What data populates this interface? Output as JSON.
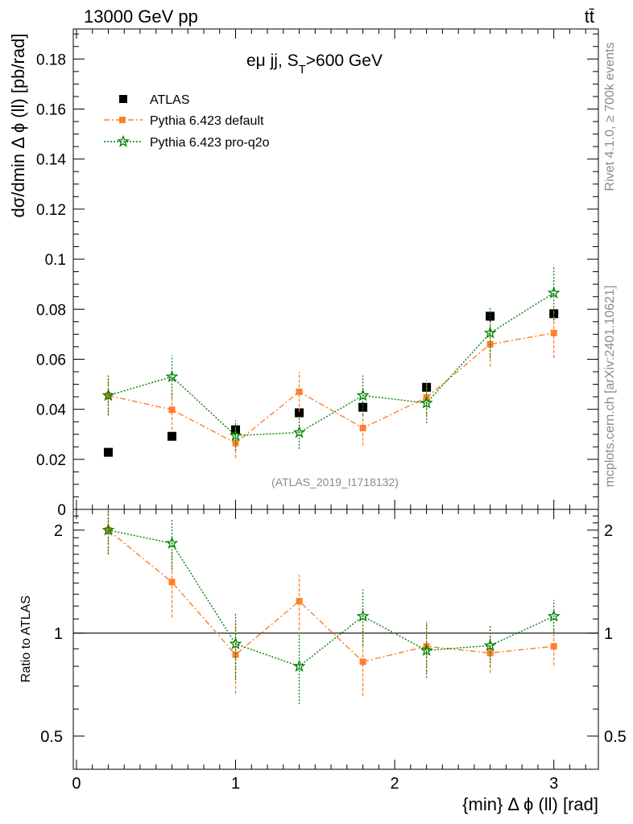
{
  "header": {
    "energy": "13000 GeV pp",
    "process": "tt̄",
    "rivet_note": "Rivet 4.1.0, ≥ 700k events",
    "source_note": "mcplots.cern.ch [arXiv:2401.10621]",
    "analysis": "(ATLAS_2019_I1718132)"
  },
  "chart_data": [
    {
      "type": "scatter",
      "panel": "main",
      "title_main": "eμ jj, S",
      "title_sub": "T",
      "title_tail": ">600 GeV",
      "xlabel": "{min} Δ ϕ (ll) [rad]",
      "ylabel": "dσ/dmin Δ ϕ (ll) [pb/rad]",
      "xlim": [
        -0.02,
        3.28
      ],
      "ylim": [
        0,
        0.192
      ],
      "xticks": [
        0,
        1,
        2,
        3
      ],
      "xtick_labels": [
        "0",
        "1",
        "2",
        "3"
      ],
      "yticks": [
        0,
        0.02,
        0.04,
        0.06,
        0.08,
        0.1,
        0.12,
        0.14,
        0.16,
        0.18
      ],
      "ytick_labels": [
        "0",
        "0.02",
        "0.04",
        "0.06",
        "0.08",
        "0.1",
        "0.12",
        "0.14",
        "0.16",
        "0.18"
      ],
      "x": [
        0.2,
        0.6,
        1.0,
        1.4,
        1.8,
        2.2,
        2.6,
        3.0
      ],
      "legend_position": "top-left",
      "series": [
        {
          "name": "ATLAS",
          "color": "#000000",
          "marker": "square",
          "line": "none",
          "values": [
            0.0228,
            0.0292,
            0.0318,
            0.0386,
            0.0408,
            0.0488,
            0.0772,
            0.0782
          ],
          "errors": [
            0.0007,
            0.0008,
            0.0009,
            0.001,
            0.001,
            0.0012,
            0.002,
            0.002
          ]
        },
        {
          "name": "Pythia 6.423 default",
          "color": "#ff7f2a",
          "marker": "square",
          "line": "dashdot",
          "values": [
            0.0455,
            0.0398,
            0.0265,
            0.047,
            0.0325,
            0.0447,
            0.066,
            0.0705
          ],
          "errors": [
            0.008,
            0.008,
            0.006,
            0.008,
            0.007,
            0.007,
            0.009,
            0.01
          ]
        },
        {
          "name": "Pythia 6.423 pro-q2o",
          "color": "#008000",
          "marker": "star",
          "line": "dotted",
          "values": [
            0.0455,
            0.053,
            0.0295,
            0.0307,
            0.0455,
            0.0425,
            0.0705,
            0.0865
          ],
          "errors": [
            0.008,
            0.0085,
            0.006,
            0.0065,
            0.008,
            0.008,
            0.01,
            0.011
          ]
        }
      ]
    },
    {
      "type": "scatter",
      "panel": "ratio",
      "ylabel": "Ratio to ATLAS",
      "yscale": "log",
      "xlim": [
        -0.02,
        3.28
      ],
      "ylim": [
        0.4,
        2.3
      ],
      "yticks": [
        0.5,
        1,
        2
      ],
      "ytick_labels": [
        "0.5",
        "1",
        "2"
      ],
      "reference_line": 1,
      "x": [
        0.2,
        0.6,
        1.0,
        1.4,
        1.8,
        2.2,
        2.6,
        3.0
      ],
      "series": [
        {
          "name": "Pythia 6.423 default",
          "color": "#ff7f2a",
          "values": [
            2.0,
            1.41,
            0.865,
            1.24,
            0.825,
            0.915,
            0.875,
            0.915
          ],
          "err_low": [
            0.3,
            0.3,
            0.2,
            0.22,
            0.17,
            0.15,
            0.11,
            0.11
          ],
          "err_high": [
            0.3,
            0.32,
            0.22,
            0.24,
            0.2,
            0.17,
            0.13,
            0.13
          ]
        },
        {
          "name": "Pythia 6.423 pro-q2o",
          "color": "#008000",
          "values": [
            2.0,
            1.83,
            0.93,
            0.8,
            1.12,
            0.89,
            0.92,
            1.12
          ],
          "err_low": [
            0.3,
            0.3,
            0.2,
            0.18,
            0.2,
            0.15,
            0.12,
            0.12
          ],
          "err_high": [
            0.3,
            0.32,
            0.22,
            0.2,
            0.22,
            0.17,
            0.13,
            0.13
          ]
        }
      ]
    }
  ]
}
